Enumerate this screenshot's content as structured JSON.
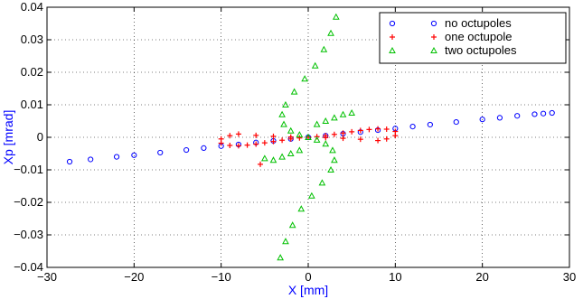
{
  "chart_data": {
    "type": "scatter",
    "title": "",
    "xlabel": "X [mm]",
    "ylabel": "Xp [mrad]",
    "xlim": [
      -30,
      30
    ],
    "ylim": [
      -0.04,
      0.04
    ],
    "x_ticks": [
      -30,
      -20,
      -10,
      0,
      10,
      20,
      30
    ],
    "y_ticks": [
      -0.04,
      -0.03,
      -0.02,
      -0.01,
      0,
      0.01,
      0.02,
      0.03,
      0.04
    ],
    "x_tick_labels": [
      "−30",
      "−20",
      "−10",
      "0",
      "10",
      "20",
      "30"
    ],
    "y_tick_labels": [
      "−0.04",
      "−0.03",
      "−0.02",
      "−0.01",
      "0",
      "0.01",
      "0.02",
      "0.03",
      "0.04"
    ],
    "grid": true,
    "legend_position": "top-right",
    "series": [
      {
        "name": "no octupoles",
        "color": "#0000ff",
        "marker": "circle",
        "points": [
          [
            -27.4,
            -0.0075
          ],
          [
            -25,
            -0.0068
          ],
          [
            -22,
            -0.006
          ],
          [
            -20,
            -0.0055
          ],
          [
            -17,
            -0.0047
          ],
          [
            -14,
            -0.0039
          ],
          [
            -12,
            -0.0033
          ],
          [
            -10,
            -0.0027
          ],
          [
            -8,
            -0.0022
          ],
          [
            -6,
            -0.0016
          ],
          [
            -4,
            -0.0011
          ],
          [
            -2,
            -0.0005
          ],
          [
            0,
            0.0
          ],
          [
            2,
            0.0005
          ],
          [
            4,
            0.0011
          ],
          [
            6,
            0.0016
          ],
          [
            8,
            0.0022
          ],
          [
            10,
            0.0027
          ],
          [
            12,
            0.0033
          ],
          [
            14,
            0.0039
          ],
          [
            17,
            0.0047
          ],
          [
            20,
            0.0055
          ],
          [
            22,
            0.006
          ],
          [
            24,
            0.0066
          ],
          [
            26,
            0.0071
          ],
          [
            27,
            0.0073
          ],
          [
            28.0,
            0.0075
          ]
        ]
      },
      {
        "name": "one octupole",
        "color": "#ff0000",
        "marker": "plus",
        "points": [
          [
            -10,
            -0.0018
          ],
          [
            -9,
            -0.0025
          ],
          [
            -8,
            -0.0026
          ],
          [
            -7,
            -0.0024
          ],
          [
            -6,
            -0.0021
          ],
          [
            -5,
            -0.0017
          ],
          [
            -4,
            -0.0013
          ],
          [
            -3,
            -0.0009
          ],
          [
            -2,
            -0.0005
          ],
          [
            -1,
            -0.0002
          ],
          [
            0,
            0.0
          ],
          [
            1,
            0.0002
          ],
          [
            2,
            0.0005
          ],
          [
            3,
            0.0009
          ],
          [
            4,
            0.0013
          ],
          [
            5,
            0.0017
          ],
          [
            6,
            0.0021
          ],
          [
            7,
            0.0024
          ],
          [
            8,
            0.0026
          ],
          [
            9,
            0.0025
          ],
          [
            10,
            0.0018
          ],
          [
            -10,
            -0.0005
          ],
          [
            -9,
            0.0005
          ],
          [
            -8,
            0.001
          ],
          [
            -6,
            0.0006
          ],
          [
            -4,
            0.0003
          ],
          [
            -2,
            0.0001
          ],
          [
            2,
            -0.0001
          ],
          [
            4,
            -0.0003
          ],
          [
            6,
            -0.0006
          ],
          [
            8,
            -0.001
          ],
          [
            9,
            -0.0005
          ],
          [
            10,
            0.0005
          ],
          [
            -5.5,
            -0.0083
          ]
        ]
      },
      {
        "name": "two octupoles",
        "color": "#00c000",
        "marker": "triangle",
        "points": [
          [
            3.2,
            0.037
          ],
          [
            2.6,
            0.032
          ],
          [
            1.8,
            0.027
          ],
          [
            0.8,
            0.022
          ],
          [
            -0.4,
            0.018
          ],
          [
            -1.6,
            0.014
          ],
          [
            -2.6,
            0.01
          ],
          [
            -3.0,
            0.007
          ],
          [
            -2.8,
            0.004
          ],
          [
            -2.0,
            0.002
          ],
          [
            -1.0,
            0.0008
          ],
          [
            0,
            0.0
          ],
          [
            1.0,
            -0.0008
          ],
          [
            2.0,
            -0.002
          ],
          [
            2.8,
            -0.004
          ],
          [
            3.0,
            -0.007
          ],
          [
            2.6,
            -0.01
          ],
          [
            1.6,
            -0.014
          ],
          [
            0.4,
            -0.018
          ],
          [
            -0.8,
            -0.022
          ],
          [
            -1.8,
            -0.027
          ],
          [
            -2.6,
            -0.032
          ],
          [
            -3.2,
            -0.037
          ],
          [
            1,
            0.004
          ],
          [
            2,
            0.005
          ],
          [
            3,
            0.006
          ],
          [
            4,
            0.007
          ],
          [
            5,
            0.0075
          ],
          [
            -1,
            -0.004
          ],
          [
            -2,
            -0.005
          ],
          [
            -3,
            -0.006
          ],
          [
            -4,
            -0.007
          ],
          [
            -5,
            -0.0065
          ]
        ]
      }
    ]
  }
}
